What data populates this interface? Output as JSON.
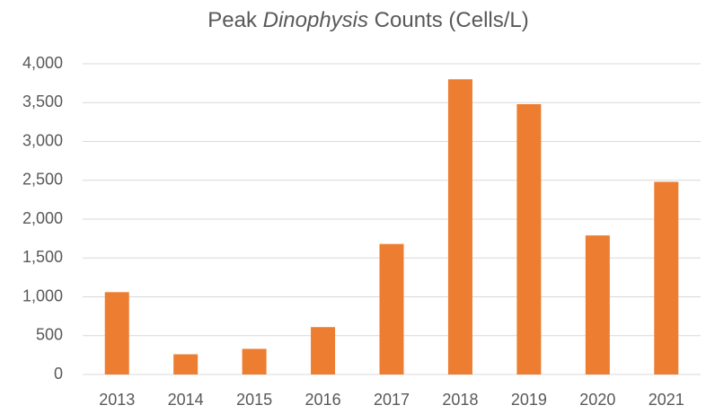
{
  "chart_data": {
    "type": "bar",
    "title": [
      {
        "text": "Peak "
      },
      {
        "text": "Dinophysis",
        "italic": true
      },
      {
        "text": " Counts (Cells/L)"
      }
    ],
    "categories": [
      "2013",
      "2014",
      "2015",
      "2016",
      "2017",
      "2018",
      "2019",
      "2020",
      "2021"
    ],
    "values": [
      1060,
      260,
      330,
      610,
      1680,
      3800,
      3480,
      1790,
      2480
    ],
    "color": "#ed7d31",
    "ylim": [
      0,
      4000
    ],
    "yticks": [
      0,
      500,
      {
        "value": 1000,
        "label": "1,000"
      },
      {
        "value": 1500,
        "label": "1,500"
      },
      {
        "value": 2000,
        "label": "2,000"
      },
      {
        "value": 2500,
        "label": "2,500"
      },
      {
        "value": 3000,
        "label": "3,000"
      },
      {
        "value": 3500,
        "label": "3,500"
      },
      {
        "value": 4000,
        "label": "4,000"
      }
    ],
    "grid": true
  }
}
